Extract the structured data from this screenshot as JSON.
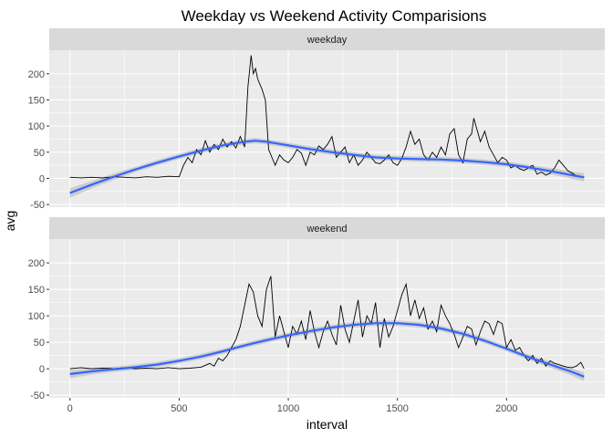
{
  "chart_data": {
    "type": "line",
    "title": "Weekday vs Weekend Activity Comparisions",
    "xlabel": "interval",
    "ylabel": "avg",
    "xlim": [
      -95,
      2450
    ],
    "ylim": [
      -55,
      245
    ],
    "x_ticks": [
      0,
      500,
      1000,
      1500,
      2000
    ],
    "y_ticks": [
      -50,
      0,
      50,
      100,
      150,
      200
    ],
    "grid": true,
    "colors": {
      "panel_bg": "#ebebeb",
      "strip_bg": "#d9d9d9",
      "grid_major": "#ffffff",
      "line": "#000000",
      "smooth": "#3366ff",
      "band": "#c7c7c7"
    },
    "facets": [
      {
        "label": "weekday",
        "series": [
          {
            "x": [
              0,
              50,
              100,
              150,
              200,
              250,
              300,
              350,
              400,
              450,
              500,
              520,
              540,
              560,
              580,
              600,
              620,
              640,
              660,
              680,
              700,
              720,
              740,
              760,
              780,
              800,
              815,
              830,
              840,
              850,
              860,
              870,
              880,
              895,
              910,
              925,
              940,
              960,
              980,
              1000,
              1020,
              1040,
              1060,
              1080,
              1100,
              1120,
              1140,
              1160,
              1180,
              1200,
              1220,
              1240,
              1260,
              1280,
              1300,
              1320,
              1340,
              1360,
              1380,
              1400,
              1420,
              1440,
              1460,
              1480,
              1500,
              1520,
              1540,
              1560,
              1580,
              1600,
              1620,
              1640,
              1660,
              1680,
              1700,
              1720,
              1740,
              1760,
              1780,
              1800,
              1820,
              1840,
              1850,
              1860,
              1880,
              1900,
              1920,
              1940,
              1960,
              1980,
              2000,
              2020,
              2040,
              2060,
              2080,
              2100,
              2120,
              2140,
              2160,
              2180,
              2200,
              2220,
              2240,
              2260,
              2280,
              2300,
              2320,
              2340,
              2355
            ],
            "y": [
              2,
              1,
              2,
              1,
              3,
              2,
              1,
              3,
              2,
              4,
              3,
              25,
              40,
              30,
              55,
              45,
              72,
              50,
              65,
              55,
              75,
              60,
              70,
              58,
              80,
              60,
              175,
              235,
              200,
              210,
              190,
              180,
              170,
              150,
              55,
              40,
              25,
              45,
              35,
              30,
              40,
              55,
              48,
              25,
              50,
              45,
              62,
              55,
              65,
              80,
              40,
              50,
              60,
              30,
              45,
              25,
              35,
              50,
              40,
              30,
              28,
              35,
              45,
              30,
              25,
              38,
              60,
              90,
              65,
              75,
              45,
              35,
              50,
              40,
              60,
              45,
              85,
              95,
              45,
              30,
              75,
              85,
              115,
              100,
              70,
              90,
              60,
              45,
              30,
              40,
              35,
              20,
              25,
              18,
              15,
              20,
              25,
              8,
              12,
              6,
              10,
              20,
              35,
              25,
              15,
              10,
              5,
              3,
              2
            ]
          },
          {
            "x": [
              0,
              100,
              200,
              300,
              400,
              500,
              600,
              700,
              800,
              850,
              900,
              1000,
              1100,
              1200,
              1300,
              1400,
              1500,
              1600,
              1700,
              1800,
              1900,
              2000,
              2100,
              2200,
              2300,
              2355
            ],
            "y": [
              -28,
              -12,
              3,
              17,
              30,
              42,
              53,
              63,
              70,
              72,
              70,
              63,
              56,
              50,
              45,
              40,
              38,
              37,
              36,
              34,
              31,
              27,
              21,
              14,
              6,
              2
            ],
            "se": [
              9,
              7,
              6,
              5,
              5,
              5,
              5,
              5,
              5,
              5,
              5,
              5,
              5,
              5,
              5,
              5,
              5,
              5,
              5,
              5,
              5,
              5,
              5,
              6,
              7,
              8
            ]
          }
        ]
      },
      {
        "label": "weekend",
        "series": [
          {
            "x": [
              0,
              50,
              100,
              150,
              200,
              250,
              300,
              350,
              400,
              450,
              500,
              550,
              600,
              640,
              660,
              680,
              700,
              720,
              740,
              760,
              780,
              800,
              820,
              840,
              860,
              880,
              900,
              920,
              940,
              960,
              980,
              1000,
              1020,
              1040,
              1060,
              1080,
              1100,
              1120,
              1140,
              1160,
              1180,
              1200,
              1220,
              1240,
              1260,
              1280,
              1300,
              1320,
              1340,
              1360,
              1380,
              1400,
              1420,
              1440,
              1460,
              1480,
              1500,
              1520,
              1540,
              1560,
              1580,
              1600,
              1620,
              1640,
              1660,
              1680,
              1700,
              1720,
              1740,
              1760,
              1780,
              1800,
              1820,
              1840,
              1860,
              1880,
              1900,
              1920,
              1940,
              1960,
              1980,
              2000,
              2020,
              2040,
              2060,
              2080,
              2100,
              2120,
              2140,
              2160,
              2180,
              2200,
              2220,
              2240,
              2260,
              2280,
              2300,
              2320,
              2340,
              2355
            ],
            "y": [
              0,
              2,
              0,
              1,
              0,
              2,
              0,
              1,
              0,
              2,
              0,
              1,
              3,
              10,
              5,
              20,
              15,
              25,
              40,
              55,
              80,
              120,
              160,
              145,
              100,
              80,
              150,
              175,
              60,
              100,
              70,
              40,
              80,
              65,
              90,
              55,
              110,
              70,
              40,
              70,
              90,
              65,
              45,
              120,
              75,
              50,
              90,
              130,
              60,
              100,
              85,
              125,
              40,
              95,
              60,
              80,
              110,
              140,
              160,
              100,
              130,
              95,
              115,
              75,
              90,
              70,
              120,
              100,
              85,
              65,
              40,
              60,
              80,
              75,
              45,
              70,
              90,
              85,
              65,
              90,
              85,
              40,
              55,
              35,
              40,
              25,
              15,
              25,
              10,
              20,
              5,
              15,
              10,
              8,
              5,
              3,
              2,
              5,
              12,
              0
            ]
          },
          {
            "x": [
              0,
              100,
              200,
              300,
              400,
              500,
              600,
              700,
              800,
              900,
              1000,
              1100,
              1200,
              1300,
              1400,
              1500,
              1600,
              1700,
              1800,
              1900,
              2000,
              2100,
              2200,
              2300,
              2355
            ],
            "y": [
              -10,
              -5,
              -1,
              3,
              8,
              15,
              23,
              33,
              44,
              54,
              63,
              71,
              78,
              83,
              86,
              86,
              83,
              76,
              66,
              53,
              38,
              22,
              8,
              -6,
              -15
            ],
            "se": [
              8,
              6,
              5,
              5,
              5,
              5,
              5,
              5,
              5,
              5,
              5,
              5,
              5,
              5,
              5,
              5,
              5,
              5,
              5,
              5,
              5,
              5,
              6,
              7,
              8
            ]
          }
        ]
      }
    ]
  }
}
